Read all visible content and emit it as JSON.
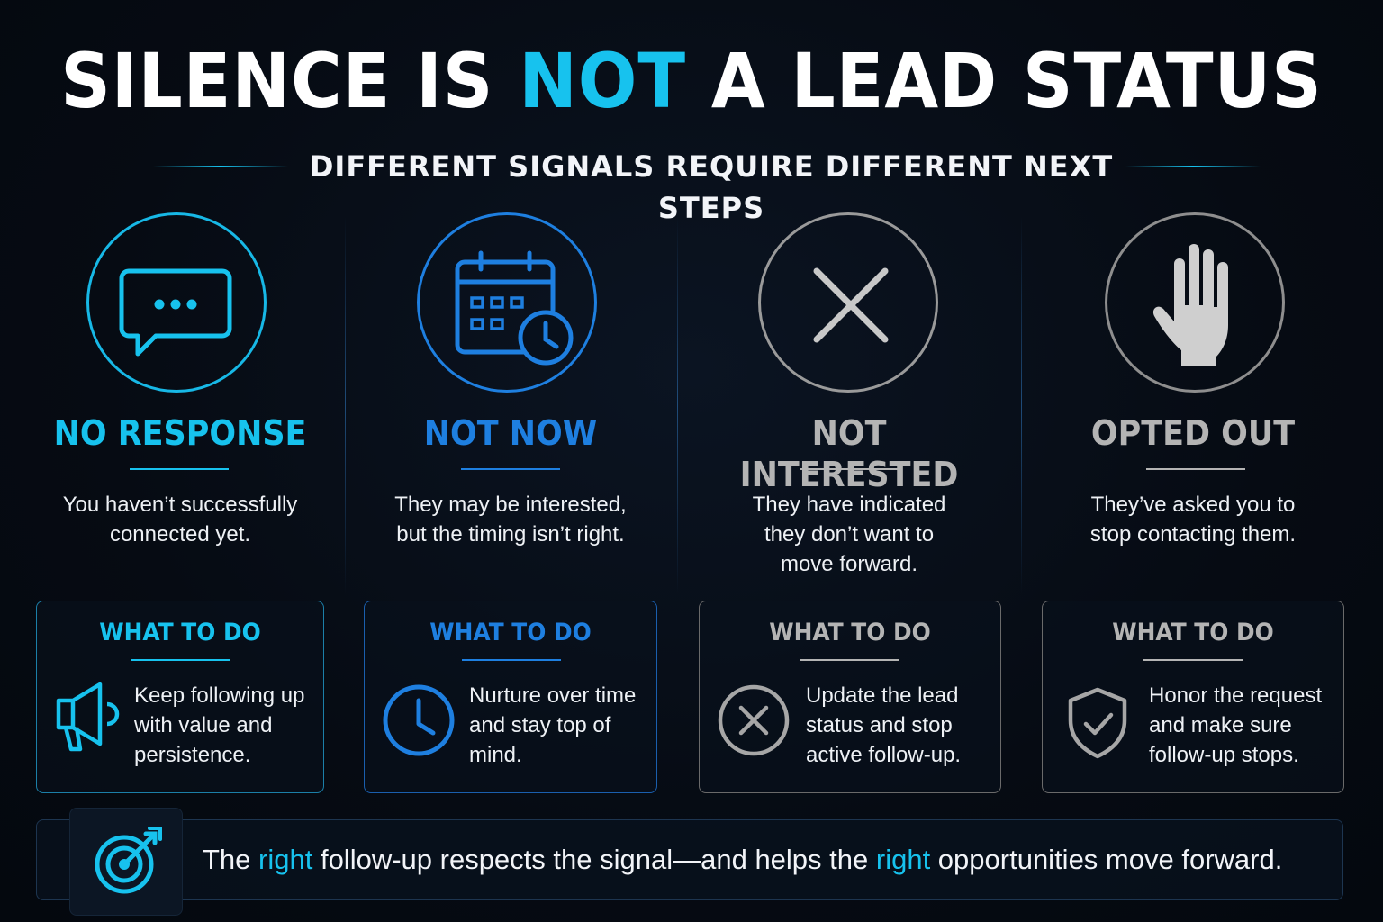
{
  "header": {
    "title_part1": "SILENCE IS ",
    "title_highlight": "NOT",
    "title_part2": " A LEAD STATUS",
    "subtitle": "DIFFERENT SIGNALS REQUIRE DIFFERENT NEXT STEPS"
  },
  "colors": {
    "cyan": "#17c2ee",
    "blue": "#1e7fe0",
    "gray": "#b4b4b4",
    "light_gray": "#c8c8c8"
  },
  "columns": [
    {
      "icon": "chat-bubble-icon",
      "title": "NO RESPONSE",
      "description_lines": [
        "You haven’t successfully",
        "connected yet."
      ],
      "card": {
        "title": "WHAT TO DO",
        "icon": "megaphone-icon",
        "text_lines": [
          "Keep following up",
          "with value and",
          "persistence."
        ]
      }
    },
    {
      "icon": "calendar-clock-icon",
      "title": "NOT NOW",
      "description_lines": [
        "They may be interested,",
        "but the timing isn’t right."
      ],
      "card": {
        "title": "WHAT TO DO",
        "icon": "clock-icon",
        "text_lines": [
          "Nurture over time",
          "and stay top of",
          "mind."
        ]
      }
    },
    {
      "icon": "x-mark-icon",
      "title": "NOT INTERESTED",
      "description_lines": [
        "They have indicated",
        "they don’t want to",
        "move forward."
      ],
      "card": {
        "title": "WHAT TO DO",
        "icon": "x-circle-icon",
        "text_lines": [
          "Update the lead",
          "status and stop",
          "active follow-up."
        ]
      }
    },
    {
      "icon": "stop-hand-icon",
      "title": "OPTED OUT",
      "description_lines": [
        "They’ve asked you to",
        "stop contacting them."
      ],
      "card": {
        "title": "WHAT TO DO",
        "icon": "shield-check-icon",
        "text_lines": [
          "Honor the request",
          "and make sure",
          "follow-up stops."
        ]
      }
    }
  ],
  "footer": {
    "icon": "target-icon",
    "text_part1": "The ",
    "highlight1": "right",
    "text_part2": " follow-up respects the signal—and helps the ",
    "highlight2": "right",
    "text_part3": " opportunities move forward."
  }
}
